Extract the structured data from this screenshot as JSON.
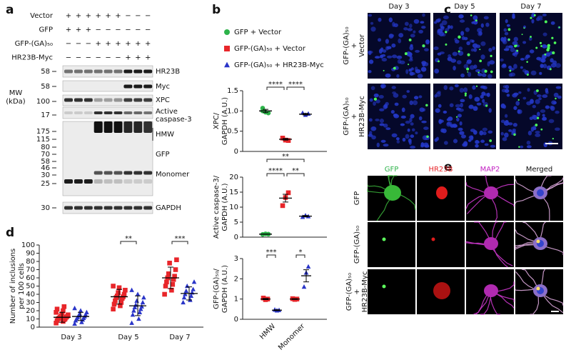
{
  "labels": [
    "a",
    "b",
    "c",
    "d",
    "e"
  ],
  "panel_a": {
    "rows": [
      {
        "name": "Vector",
        "signs": [
          "+",
          "+",
          "+",
          "+",
          "+",
          "+",
          "−",
          "−",
          "−"
        ]
      },
      {
        "name": "GFP",
        "signs": [
          "+",
          "+",
          "+",
          "−",
          "−",
          "−",
          "−",
          "−",
          "−"
        ]
      },
      {
        "name": "GFP-(GA)₅₀",
        "signs": [
          "−",
          "−",
          "−",
          "+",
          "+",
          "+",
          "+",
          "+",
          "+"
        ]
      },
      {
        "name": "HR23B-Myc",
        "signs": [
          "−",
          "−",
          "−",
          "−",
          "−",
          "−",
          "+",
          "+",
          "+"
        ]
      }
    ],
    "mw_title": [
      "MW",
      "(kDa)"
    ],
    "mw_markers": [
      58,
      58,
      100,
      17,
      175,
      115,
      80,
      70,
      58,
      46,
      30,
      25,
      30
    ],
    "bands": [
      [
        "HR23B"
      ],
      [
        "Myc"
      ],
      [
        "XPC"
      ],
      [
        "Active",
        "caspase-3"
      ],
      [
        "HMW"
      ],
      [
        "GFP"
      ],
      [
        "Monomer"
      ],
      [
        "GAPDH"
      ]
    ]
  },
  "panel_c": {
    "columns": [
      "Day 3",
      "Day 5",
      "Day 7"
    ],
    "rows": [
      [
        "GFP-(GA)₅₀",
        "+",
        "Vector"
      ],
      [
        "GFP-(GA)₅₀",
        "+",
        "HR23B-Myc"
      ]
    ]
  },
  "panel_e": {
    "columns": [
      "GFP",
      "HR23B",
      "MAP2",
      "Merged"
    ],
    "rows": [
      [
        "GFP"
      ],
      [
        "GFP-(GA)₅₀"
      ],
      [
        "GFP-(GA)₅₀",
        "+",
        "HR23B-Myc"
      ]
    ]
  },
  "chart_data": [
    {
      "type": "strip",
      "ylabel": [
        "XPC/",
        "GAPDH (A.U.)"
      ],
      "ylim": [
        0,
        1.5
      ],
      "yticks": [
        0,
        0.5,
        {
          "value": 1,
          "label": "1.0"
        },
        1.5
      ],
      "categories": [
        null
      ],
      "series": [
        {
          "name": "GFP + Vector",
          "color": "#2db34a",
          "marker": "circle",
          "values": [
            [
              1.07,
              0.97,
              0.95,
              1.0
            ]
          ],
          "means": [
            1.0
          ],
          "errors": [
            0.04
          ]
        },
        {
          "name": "GFP-(GA)₅₀ + Vector",
          "color": "#e8262a",
          "marker": "square",
          "values": [
            [
              0.33,
              0.28,
              0.27
            ]
          ],
          "means": [
            0.3
          ],
          "errors": [
            0.02
          ]
        },
        {
          "name": "GFP-(GA)₅₀ + HR23B-Myc",
          "color": "#2a35c8",
          "marker": "triangle",
          "values": [
            [
              0.95,
              0.9,
              0.93
            ]
          ],
          "means": [
            0.92
          ],
          "errors": [
            0.02
          ]
        }
      ],
      "brackets": [
        {
          "label": "****",
          "between": [
            [
              0,
              0
            ],
            [
              0,
              1
            ]
          ]
        },
        {
          "label": "****",
          "between": [
            [
              0,
              1
            ],
            [
              0,
              2
            ]
          ]
        }
      ]
    },
    {
      "type": "strip",
      "ylabel": [
        "Active caspase-3/",
        "GAPDH (A.U.)"
      ],
      "ylim": [
        0,
        20
      ],
      "yticks": [
        0,
        5,
        10,
        15,
        20
      ],
      "categories": [
        null
      ],
      "series": [
        {
          "color": "#2db34a",
          "marker": "circle",
          "values": [
            [
              0.9,
              1.1,
              1.0
            ]
          ],
          "means": [
            1.0
          ],
          "errors": [
            0.05
          ]
        },
        {
          "color": "#e8262a",
          "marker": "square",
          "values": [
            [
              10.5,
              13.2,
              14.8
            ]
          ],
          "means": [
            13
          ],
          "errors": [
            1.3
          ]
        },
        {
          "color": "#2a35c8",
          "marker": "triangle",
          "values": [
            [
              6.7,
              7.2,
              6.9
            ]
          ],
          "means": [
            7
          ],
          "errors": [
            0.2
          ]
        }
      ],
      "brackets": [
        {
          "label": "****",
          "between": [
            [
              0,
              0
            ],
            [
              0,
              1
            ]
          ]
        },
        {
          "label": "**",
          "between": [
            [
              0,
              1
            ],
            [
              0,
              2
            ]
          ]
        },
        {
          "label": "**",
          "between": [
            [
              0,
              0
            ],
            [
              0,
              2
            ]
          ]
        }
      ]
    },
    {
      "type": "strip",
      "ylabel": [
        "GFP-(GA)₅₀/",
        "GAPDH (A.U.)"
      ],
      "ylim": [
        0,
        3
      ],
      "yticks": [
        0,
        1,
        2,
        3
      ],
      "categories": [
        "HMW",
        "Monomer"
      ],
      "series": [
        {
          "color": "#e8262a",
          "marker": "square",
          "values": [
            [
              1.05,
              0.97,
              1.0
            ],
            [
              1.02,
              0.98,
              1.0
            ]
          ],
          "means": [
            1.0,
            1.0
          ],
          "errors": [
            0.03,
            0.02
          ]
        },
        {
          "color": "#2a35c8",
          "marker": "triangle",
          "values": [
            [
              0.47,
              0.43,
              0.45
            ],
            [
              1.6,
              2.3,
              2.6
            ]
          ],
          "means": [
            0.45,
            2.15
          ],
          "errors": [
            0.02,
            0.3
          ]
        }
      ],
      "brackets": [
        {
          "label": "***",
          "between": [
            [
              0,
              0
            ],
            [
              0,
              1
            ]
          ]
        },
        {
          "label": "*",
          "between": [
            [
              1,
              0
            ],
            [
              1,
              1
            ]
          ]
        }
      ]
    },
    {
      "type": "strip",
      "ylabel": [
        "Number of inclusions",
        "per 100 cells"
      ],
      "ylim": [
        0,
        100
      ],
      "yticks": [
        0,
        10,
        20,
        30,
        40,
        50,
        60,
        70,
        80,
        90,
        100
      ],
      "categories": [
        "Day 3",
        "Day 5",
        "Day 7"
      ],
      "series": [
        {
          "color": "#e8262a",
          "marker": "square",
          "values": [
            [
              5,
              7,
              8,
              9,
              10,
              10,
              11,
              12,
              12,
              13,
              14,
              15,
              16,
              18,
              20,
              22,
              25
            ],
            [
              22,
              26,
              28,
              30,
              32,
              35,
              36,
              37,
              38,
              40,
              42,
              45,
              48,
              50
            ],
            [
              40,
              45,
              50,
              52,
              55,
              58,
              60,
              62,
              65,
              70,
              78,
              82
            ]
          ],
          "means": [
            12,
            37,
            60
          ],
          "errors": [
            6,
            9,
            13
          ]
        },
        {
          "color": "#2a35c8",
          "marker": "triangle",
          "values": [
            [
              4,
              6,
              8,
              9,
              10,
              11,
              12,
              13,
              14,
              15,
              16,
              18,
              20,
              23
            ],
            [
              5,
              10,
              15,
              18,
              20,
              22,
              24,
              25,
              27,
              30,
              32,
              36,
              40,
              45
            ],
            [
              30,
              33,
              36,
              38,
              40,
              42,
              44,
              46,
              50,
              55
            ]
          ],
          "means": [
            13,
            26,
            41
          ],
          "errors": [
            5,
            12,
            8
          ]
        }
      ],
      "brackets": [
        {
          "label": "**",
          "between": [
            [
              1,
              0
            ],
            [
              1,
              1
            ]
          ]
        },
        {
          "label": "***",
          "between": [
            [
              2,
              0
            ],
            [
              2,
              1
            ]
          ]
        }
      ]
    }
  ]
}
